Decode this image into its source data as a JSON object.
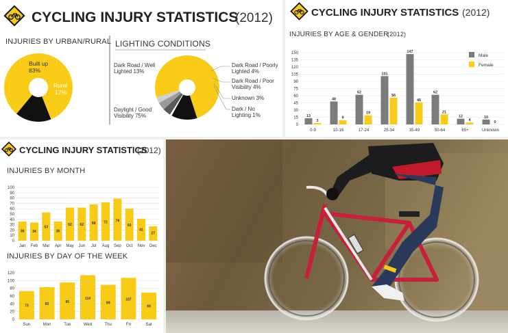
{
  "colors": {
    "yellow": "#f7cb16",
    "black": "#111111",
    "gray": "#9a9a9a",
    "dark_gray": "#5a5a5a",
    "light_gray": "#cfcfcf",
    "male": "#7b7b7b"
  },
  "icon": "bicycle-warning-sign-icon",
  "chart_data": [
    {
      "type": "pie",
      "title": "CYCLING INJURY STATISTICS",
      "year": "(2012)",
      "section": "INJURIES BY URBAN/RURAL",
      "slices": [
        {
          "label": "Built up",
          "value": 83,
          "display": "83%"
        },
        {
          "label": "Rural",
          "value": 17,
          "display": "17%"
        }
      ]
    },
    {
      "type": "pie",
      "section": "LIGHTING CONDITIONS",
      "slices": [
        {
          "label": "Daylight / Good Visibility",
          "line1": "Daylight / Good",
          "line2": "Visibility 75%",
          "value": 75
        },
        {
          "label": "Dark Road / Well Lighted",
          "line1": "Dark Road / Well",
          "line2": "Lighted 13%",
          "value": 13
        },
        {
          "label": "Dark Road / Poorly Lighted",
          "line1": "Dark Road / Poorly",
          "line2": "Lighted 4%",
          "value": 4
        },
        {
          "label": "Dark Road / Poor Visibility",
          "line1": "Dark Road / Poor",
          "line2": "Visibility 4%",
          "value": 4
        },
        {
          "label": "Unknown",
          "line1": "Unknown 3%",
          "line2": "",
          "value": 3
        },
        {
          "label": "Dark / No Lighting",
          "line1": "Dark / No",
          "line2": "Lighting 1%",
          "value": 1
        }
      ]
    },
    {
      "type": "bar",
      "title": "CYCLING INJURY STATISTICS",
      "year": "(2012)",
      "section": "INJURIES BY AGE & GENDER",
      "section_suffix": "(2012)",
      "categories": [
        "0-9",
        "10-16",
        "17-24",
        "25-34",
        "35-49",
        "50-64",
        "65+",
        "Unknown"
      ],
      "series": [
        {
          "name": "Male",
          "values": [
            13,
            48,
            62,
            101,
            147,
            62,
            12,
            10
          ]
        },
        {
          "name": "Female",
          "values": [
            3,
            9,
            19,
            56,
            46,
            21,
            4,
            0
          ]
        }
      ],
      "yticks": [
        0,
        15,
        30,
        45,
        60,
        75,
        90,
        105,
        120,
        135,
        150
      ],
      "ylim": [
        0,
        150
      ],
      "grid": true,
      "legend": "top-right"
    },
    {
      "type": "bar",
      "title": "CYCLING INJURY STATISTICS",
      "year": "(2012)",
      "section": "INJURIES BY MONTH",
      "categories": [
        "Jan",
        "Feb",
        "Mar",
        "Apr",
        "May",
        "Jun",
        "Jul",
        "Aug",
        "Sep",
        "Oct",
        "Nov",
        "Dec"
      ],
      "values": [
        36,
        34,
        53,
        36,
        62,
        62,
        68,
        72,
        79,
        60,
        41,
        27
      ],
      "yticks": [
        0,
        10,
        20,
        30,
        40,
        50,
        60,
        70,
        80,
        90,
        100
      ],
      "ylim": [
        0,
        100
      ],
      "grid": true
    },
    {
      "type": "bar",
      "section": "INJURIES BY DAY OF THE WEEK",
      "categories": [
        "Sun",
        "Mon",
        "Tue",
        "Wed",
        "Thu",
        "Fri",
        "Sat"
      ],
      "values": [
        73,
        83,
        95,
        114,
        89,
        107,
        69
      ],
      "yticks": [
        0,
        20,
        40,
        60,
        80,
        100,
        120
      ],
      "ylim": [
        0,
        120
      ],
      "grid": true
    }
  ]
}
